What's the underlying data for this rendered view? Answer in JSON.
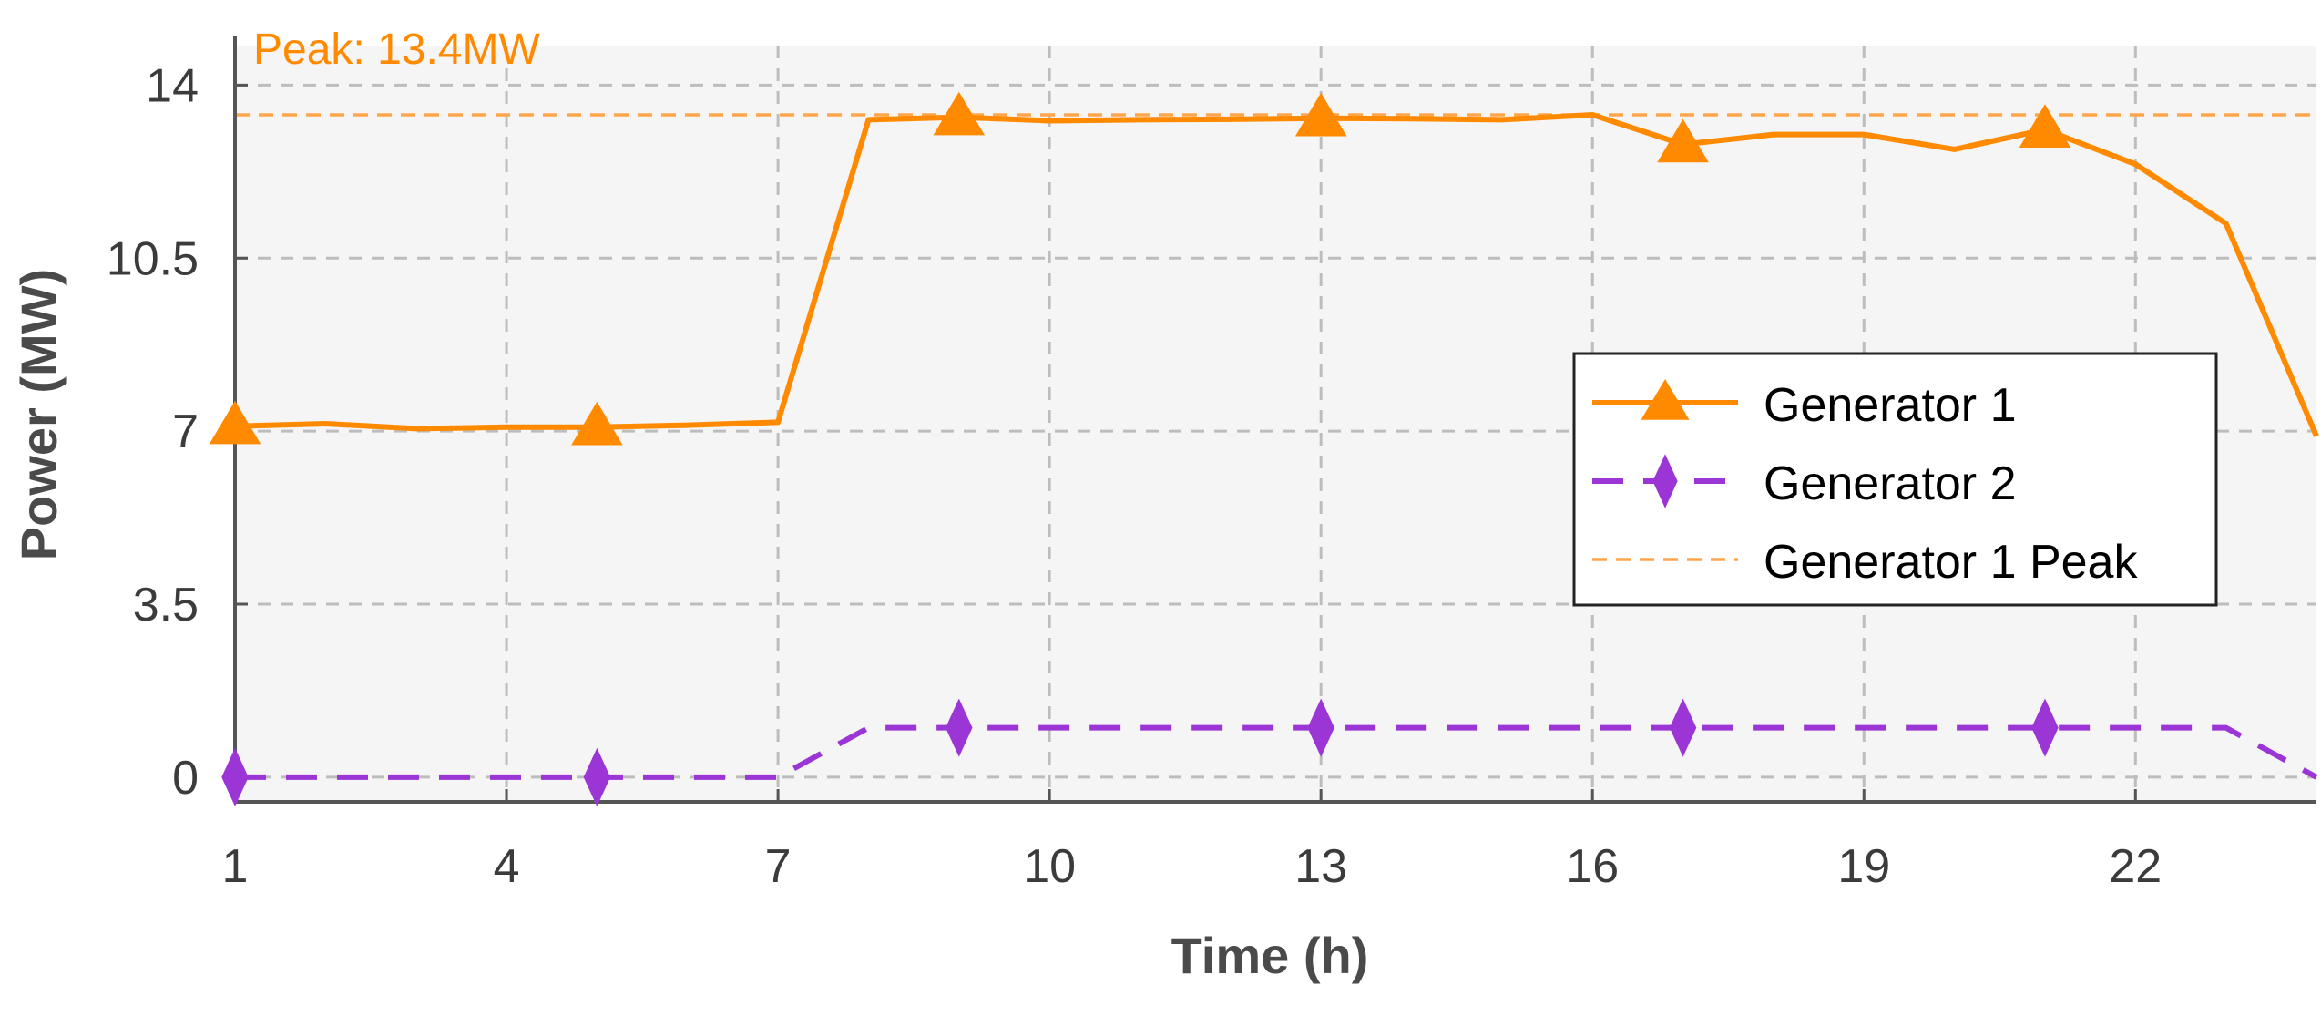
{
  "colors": {
    "plot_background": "#f5f5f5",
    "grid": "#bdbdbd",
    "axis": "#555555",
    "generator1": "#ff8a00",
    "generator2": "#9b35d6",
    "generator1_peak": "#ffa64d"
  },
  "chart_data": {
    "type": "line",
    "xlabel": "Time (h)",
    "ylabel": "Power (MW)",
    "xlim": [
      1,
      24
    ],
    "ylim": [
      -0.5,
      14.8
    ],
    "xticks": [
      1,
      4,
      7,
      10,
      13,
      16,
      19,
      22
    ],
    "yticks": [
      0,
      3.5,
      7,
      10.5,
      14
    ],
    "ytick_labels": [
      "0",
      "3.5",
      "7",
      "10.5",
      "14"
    ],
    "grid": true,
    "legend_position": "right",
    "x": [
      1,
      2,
      3,
      4,
      5,
      6,
      7,
      8,
      9,
      10,
      11,
      12,
      13,
      14,
      15,
      16,
      17,
      18,
      19,
      20,
      21,
      22,
      23,
      24
    ],
    "series": [
      {
        "name": "Generator 1",
        "style": "solid",
        "marker": "triangle",
        "marker_x": [
          1,
          5,
          9,
          13,
          17,
          21
        ],
        "values": [
          7.1,
          7.15,
          7.05,
          7.08,
          7.08,
          7.12,
          7.18,
          13.3,
          13.35,
          13.28,
          13.3,
          13.31,
          13.33,
          13.32,
          13.3,
          13.4,
          12.8,
          13.0,
          13.0,
          12.7,
          13.1,
          12.4,
          11.2,
          6.9
        ]
      },
      {
        "name": "Generator 2",
        "style": "dashed",
        "marker": "diamond",
        "marker_x": [
          1,
          5,
          9,
          13,
          17,
          21
        ],
        "values": [
          0,
          0,
          0,
          0,
          0,
          0,
          0,
          1,
          1,
          1,
          1,
          1,
          1,
          1,
          1,
          1,
          1,
          1,
          1,
          1,
          1,
          1,
          1,
          0
        ]
      }
    ],
    "reference_lines": [
      {
        "name": "Generator 1 Peak",
        "y": 13.4,
        "style": "dashed"
      }
    ],
    "annotations": [
      {
        "text": "Peak: 13.4MW"
      }
    ]
  }
}
